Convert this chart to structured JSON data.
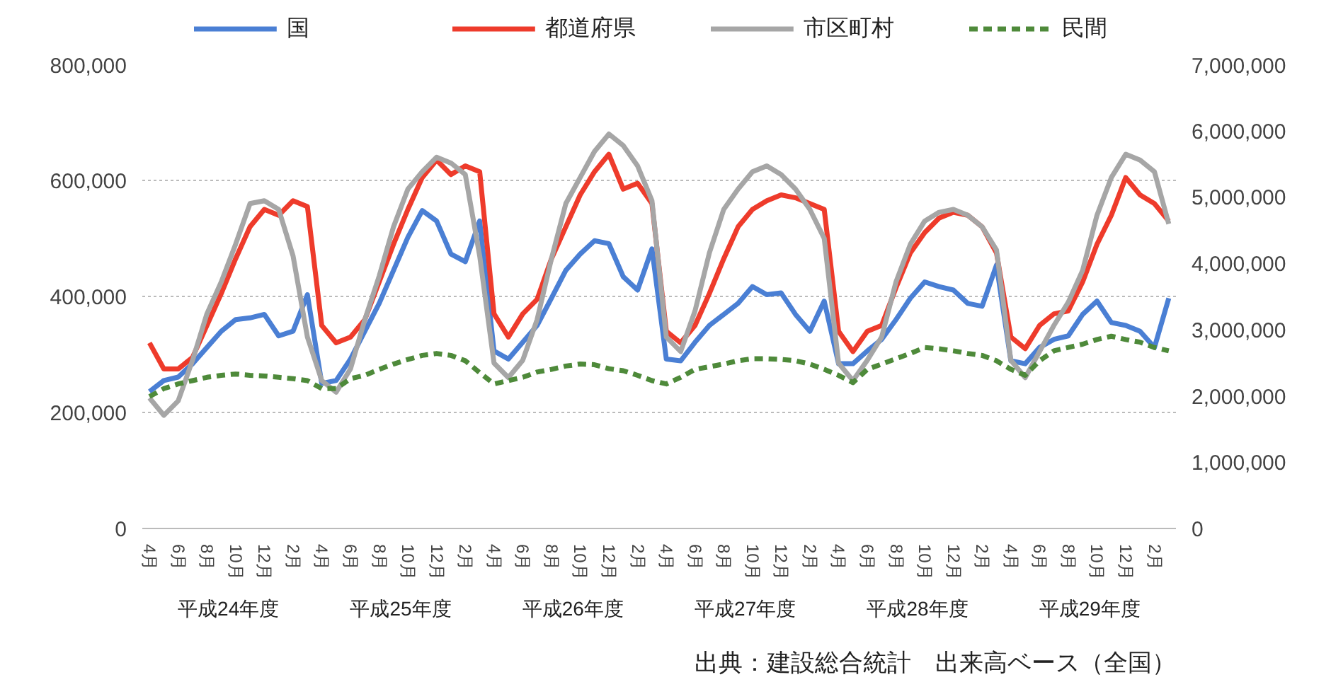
{
  "chart_data": {
    "type": "line",
    "categories": [
      "4月",
      null,
      "6月",
      null,
      "8月",
      null,
      "10月",
      null,
      "12月",
      null,
      "2月",
      null,
      "4月",
      null,
      "6月",
      null,
      "8月",
      null,
      "10月",
      null,
      "12月",
      null,
      "2月",
      null,
      "4月",
      null,
      "6月",
      null,
      "8月",
      null,
      "10月",
      null,
      "12月",
      null,
      "2月",
      null,
      "4月",
      null,
      "6月",
      null,
      "8月",
      null,
      "10月",
      null,
      "12月",
      null,
      "2月",
      null,
      "4月",
      null,
      "6月",
      null,
      "8月",
      null,
      "10月",
      null,
      "12月",
      null,
      "2月",
      null,
      "4月",
      null,
      "6月",
      null,
      "8月",
      null,
      "10月",
      null,
      "12月",
      null,
      "2月",
      null
    ],
    "series": [
      {
        "name": "国",
        "color": "#4a7fd4",
        "line_style": "solid",
        "values": [
          236000,
          255000,
          261000,
          284000,
          312000,
          340000,
          360000,
          363000,
          369000,
          332000,
          340000,
          403000,
          250000,
          255000,
          292000,
          340000,
          388000,
          445000,
          502000,
          548000,
          530000,
          473000,
          460000,
          530000,
          306000,
          292000,
          321000,
          350000,
          397000,
          445000,
          473000,
          496000,
          491000,
          434000,
          411000,
          482000,
          292000,
          289000,
          321000,
          350000,
          369000,
          388000,
          417000,
          403000,
          406000,
          369000,
          340000,
          392000,
          284000,
          284000,
          306000,
          326000,
          360000,
          397000,
          425000,
          417000,
          411000,
          388000,
          383000,
          454000,
          289000,
          284000,
          312000,
          326000,
          332000,
          369000,
          392000,
          355000,
          350000,
          340000,
          312000,
          397000
        ]
      },
      {
        "name": "都道府県",
        "color": "#ee3b2b",
        "line_style": "solid",
        "values": [
          320000,
          275000,
          275000,
          295000,
          350000,
          405000,
          465000,
          520000,
          550000,
          540000,
          565000,
          555000,
          350000,
          320000,
          330000,
          360000,
          425000,
          490000,
          550000,
          605000,
          635000,
          610000,
          625000,
          615000,
          370000,
          330000,
          370000,
          395000,
          465000,
          520000,
          575000,
          615000,
          645000,
          585000,
          595000,
          560000,
          340000,
          320000,
          350000,
          405000,
          465000,
          520000,
          550000,
          565000,
          575000,
          570000,
          560000,
          550000,
          340000,
          305000,
          340000,
          350000,
          415000,
          475000,
          510000,
          535000,
          545000,
          540000,
          520000,
          475000,
          330000,
          310000,
          350000,
          370000,
          375000,
          425000,
          490000,
          540000,
          605000,
          575000,
          560000,
          530000
        ]
      },
      {
        "name": "市区町村",
        "color": "#a6a6a6",
        "line_style": "solid",
        "values": [
          225000,
          195000,
          220000,
          290000,
          370000,
          425000,
          490000,
          560000,
          565000,
          550000,
          470000,
          330000,
          255000,
          235000,
          275000,
          360000,
          435000,
          520000,
          585000,
          615000,
          640000,
          630000,
          610000,
          470000,
          285000,
          260000,
          290000,
          360000,
          465000,
          560000,
          605000,
          650000,
          680000,
          660000,
          625000,
          565000,
          330000,
          305000,
          375000,
          475000,
          550000,
          585000,
          615000,
          625000,
          610000,
          585000,
          550000,
          500000,
          285000,
          255000,
          290000,
          330000,
          425000,
          490000,
          530000,
          545000,
          550000,
          540000,
          520000,
          480000,
          290000,
          260000,
          305000,
          350000,
          390000,
          445000,
          540000,
          605000,
          645000,
          635000,
          615000,
          525000
        ]
      },
      {
        "name": "民間",
        "color": "#4e8a3a",
        "line_style": "dashed",
        "axis": "y2",
        "values": [
          1990000,
          2110000,
          2180000,
          2230000,
          2280000,
          2310000,
          2330000,
          2310000,
          2300000,
          2280000,
          2260000,
          2230000,
          2110000,
          2110000,
          2260000,
          2310000,
          2400000,
          2480000,
          2550000,
          2610000,
          2640000,
          2610000,
          2530000,
          2350000,
          2180000,
          2230000,
          2280000,
          2360000,
          2400000,
          2450000,
          2480000,
          2470000,
          2410000,
          2380000,
          2310000,
          2230000,
          2180000,
          2280000,
          2400000,
          2440000,
          2480000,
          2530000,
          2560000,
          2560000,
          2550000,
          2530000,
          2480000,
          2400000,
          2310000,
          2200000,
          2400000,
          2480000,
          2560000,
          2640000,
          2730000,
          2710000,
          2680000,
          2640000,
          2610000,
          2530000,
          2400000,
          2310000,
          2530000,
          2680000,
          2730000,
          2780000,
          2850000,
          2900000,
          2850000,
          2810000,
          2730000,
          2680000
        ]
      }
    ],
    "ylim": [
      0,
      800000
    ],
    "yticks": [
      0,
      {
        "value": 200000,
        "label": "200,000"
      },
      {
        "value": 400000,
        "label": "400,000"
      },
      {
        "value": 600000,
        "label": "600,000"
      },
      {
        "value": 800000,
        "label": "800,000"
      }
    ],
    "y2lim": [
      0,
      7000000
    ],
    "y2ticks": [
      0,
      {
        "value": 1000000,
        "label": "1,000,000"
      },
      {
        "value": 2000000,
        "label": "2,000,000"
      },
      {
        "value": 3000000,
        "label": "3,000,000"
      },
      {
        "value": 4000000,
        "label": "4,000,000"
      },
      {
        "value": 5000000,
        "label": "5,000,000"
      },
      {
        "value": 6000000,
        "label": "6,000,000"
      },
      {
        "value": 7000000,
        "label": "7,000,000"
      }
    ],
    "grid": "y",
    "legend": "top",
    "marker": "none",
    "annotations": [
      "平成24年度",
      "平成25年度",
      "平成26年度",
      "平成27年度",
      "平成28年度",
      "平成29年度",
      "出典：建設総合統計　出来高ベース（全国）"
    ]
  }
}
